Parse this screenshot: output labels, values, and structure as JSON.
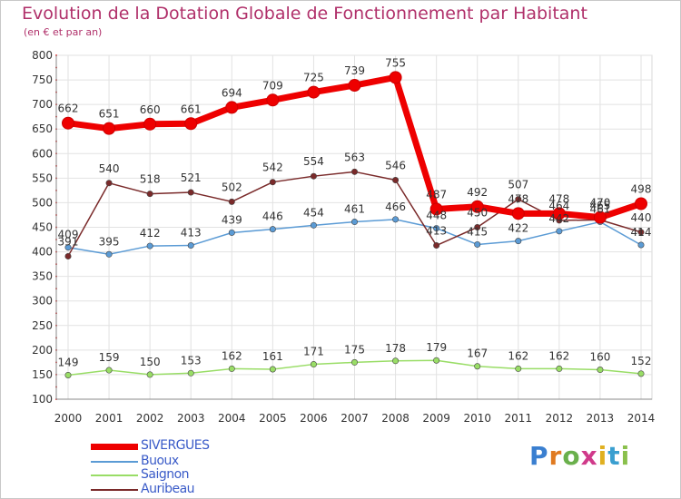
{
  "title": "Evolution de la Dotation Globale de Fonctionnement par Habitant",
  "subtitle": "(en € et par an)",
  "brand": {
    "text": "Proxiti",
    "letter_colors": [
      "#3a7fd0",
      "#e07a20",
      "#6ab04c",
      "#d03a8a",
      "#e0b020",
      "#3a9fd0",
      "#8ac04c"
    ]
  },
  "chart_data": {
    "type": "line",
    "x": [
      "2000",
      "2001",
      "2002",
      "2003",
      "2004",
      "2005",
      "2006",
      "2007",
      "2008",
      "2009",
      "2010",
      "2011",
      "2012",
      "2013",
      "2014"
    ],
    "ylim": [
      100,
      800
    ],
    "yticks": [
      "100",
      "150",
      "200",
      "250",
      "300",
      "350",
      "400",
      "450",
      "500",
      "550",
      "600",
      "650",
      "700",
      "750",
      "800"
    ],
    "grid": true,
    "series": [
      {
        "name": "SIVERGUES",
        "color": "#ee0000",
        "values": [
          662,
          651,
          660,
          661,
          694,
          709,
          725,
          739,
          755,
          487,
          492,
          478,
          478,
          470,
          498
        ],
        "labels": [
          "662",
          "651",
          "660",
          "661",
          "694",
          "709",
          "725",
          "739",
          "755",
          "487",
          "492",
          "478",
          "478",
          "470",
          "498"
        ]
      },
      {
        "name": "Buoux",
        "color": "#5b9bd5",
        "values": [
          409,
          395,
          412,
          413,
          439,
          446,
          454,
          461,
          466,
          448,
          415,
          422,
          442,
          461,
          414
        ],
        "labels": [
          "409",
          "395",
          "412",
          "413",
          "439",
          "446",
          "454",
          "461",
          "466",
          "448",
          "415",
          "422",
          "442",
          "461",
          "414"
        ]
      },
      {
        "name": "Saignon",
        "color": "#99dd66",
        "values": [
          149,
          159,
          150,
          153,
          162,
          161,
          171,
          175,
          178,
          179,
          167,
          162,
          162,
          160,
          152
        ],
        "labels": [
          "149",
          "159",
          "150",
          "153",
          "162",
          "161",
          "171",
          "175",
          "178",
          "179",
          "167",
          "162",
          "162",
          "160",
          "152"
        ]
      },
      {
        "name": "Auribeau",
        "color": "#7a2a2a",
        "values": [
          391,
          540,
          518,
          521,
          502,
          542,
          554,
          563,
          546,
          413,
          450,
          507,
          464,
          465,
          440
        ],
        "labels": [
          "391",
          "540",
          "518",
          "521",
          "502",
          "542",
          "554",
          "563",
          "546",
          "413",
          "450",
          "507",
          "464",
          "465",
          "440"
        ]
      }
    ]
  }
}
